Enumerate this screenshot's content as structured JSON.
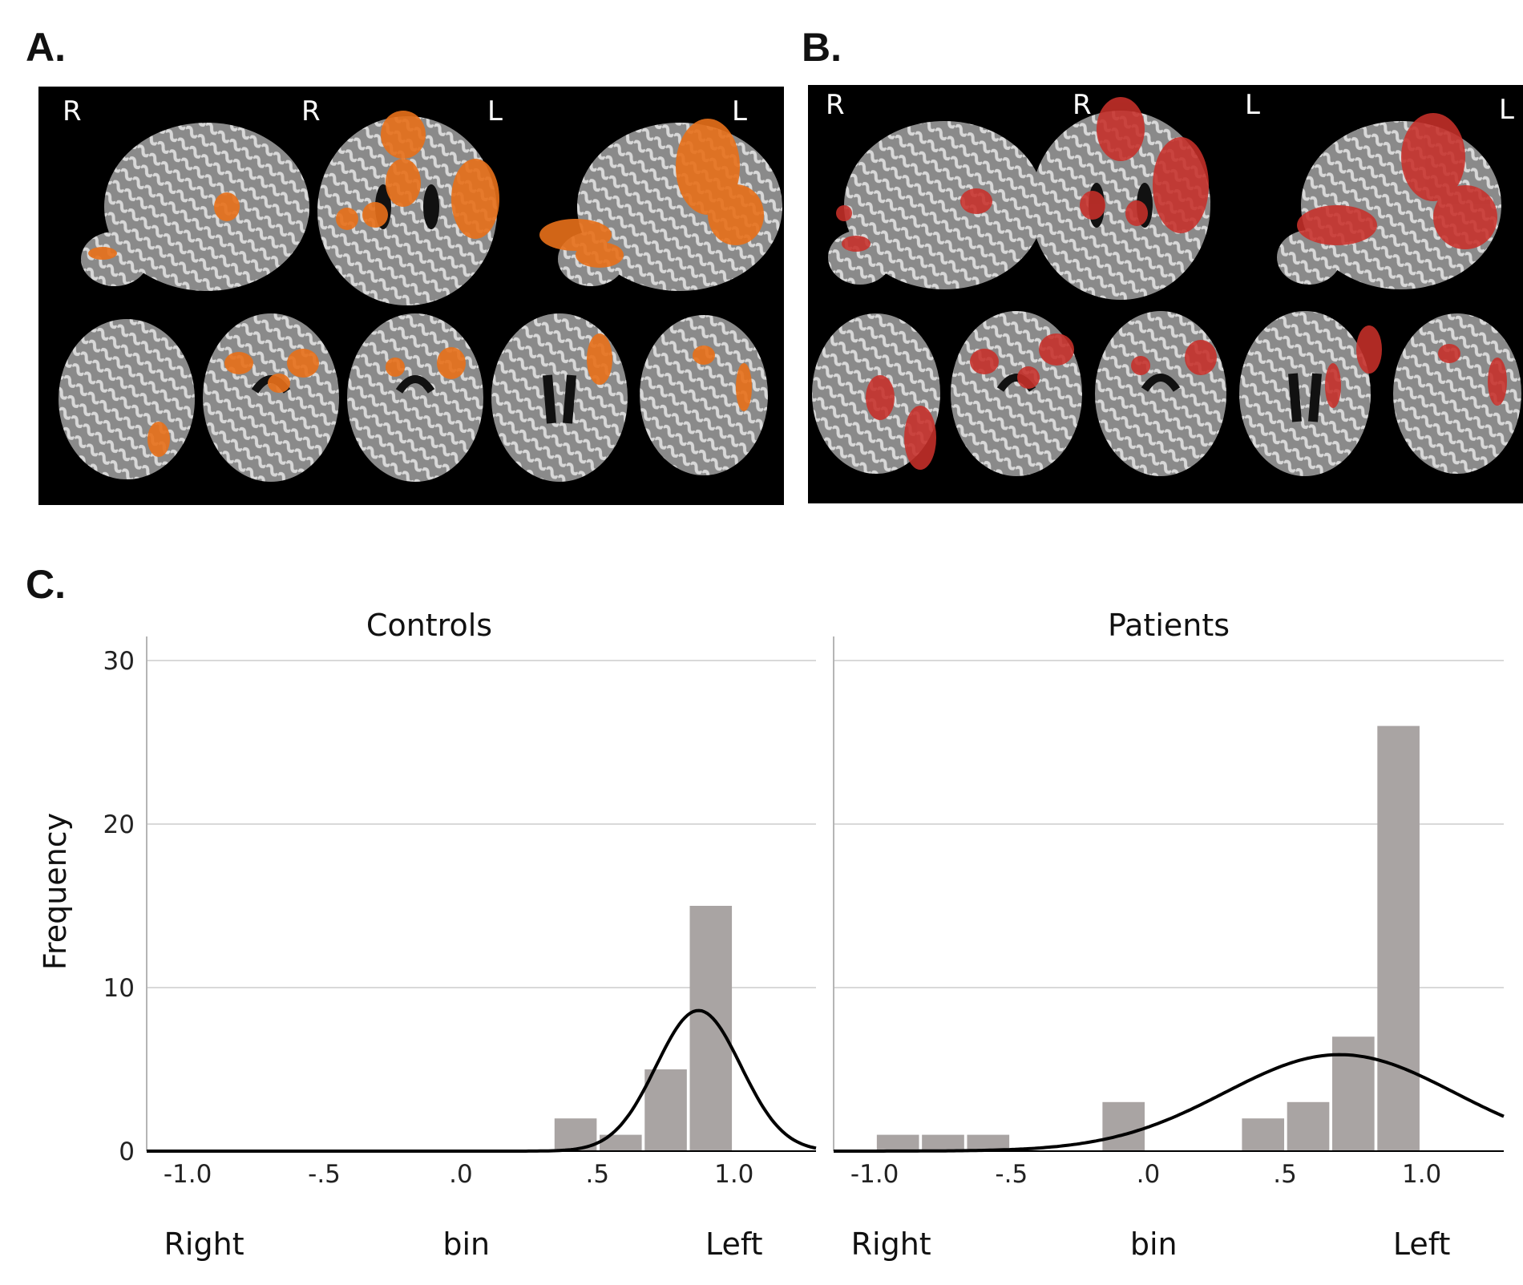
{
  "panels": {
    "a": {
      "label": "A.",
      "orientation": {
        "sagittal_right": "R",
        "coronal_right": "R",
        "coronal_left": "L",
        "sagittal_left": "L"
      },
      "overlay_color": "#e8701a"
    },
    "b": {
      "label": "B.",
      "orientation": {
        "sagittal_right": "R",
        "coronal_right": "R",
        "coronal_left": "L",
        "sagittal_left": "L"
      },
      "overlay_color": "#c8302a"
    },
    "c": {
      "label": "C."
    }
  },
  "colors": {
    "bar": "#a9a4a3",
    "curve": "#000000",
    "grid": "#d9d9d9",
    "brain_bg": "#000000"
  },
  "chart_data": [
    {
      "type": "bar",
      "title": "Controls",
      "ylabel": "Frequency",
      "ylim": [
        0,
        30
      ],
      "yticks": [
        "0",
        "10",
        "20",
        "30"
      ],
      "xlim": [
        -1.15,
        1.3
      ],
      "xticks": [
        "-1.0",
        "-.5",
        ".0",
        ".5",
        "1.0"
      ],
      "xtick_values": [
        -1.0,
        -0.5,
        0.0,
        0.5,
        1.0
      ],
      "x_annotations": {
        "left_end": "Right",
        "middle": "bin",
        "right_end": "Left"
      },
      "bin_width": 0.166,
      "bins": [
        {
          "center": 0.42,
          "count": 2
        },
        {
          "center": 0.585,
          "count": 1
        },
        {
          "center": 0.75,
          "count": 5
        },
        {
          "center": 0.915,
          "count": 15
        }
      ],
      "normal_curve": {
        "mean": 0.87,
        "sd": 0.155,
        "peak": 8.6
      },
      "grid": true
    },
    {
      "type": "bar",
      "title": "Patients",
      "ylim": [
        0,
        30
      ],
      "xlim": [
        -1.15,
        1.3
      ],
      "xticks": [
        "-1.0",
        "-.5",
        ".0",
        ".5",
        "1.0"
      ],
      "xtick_values": [
        -1.0,
        -0.5,
        0.0,
        0.5,
        1.0
      ],
      "x_annotations": {
        "left_end": "Right",
        "middle": "bin",
        "right_end": "Left"
      },
      "bin_width": 0.166,
      "bins": [
        {
          "center": -0.915,
          "count": 1
        },
        {
          "center": -0.75,
          "count": 1
        },
        {
          "center": -0.585,
          "count": 1
        },
        {
          "center": -0.09,
          "count": 3
        },
        {
          "center": 0.42,
          "count": 2
        },
        {
          "center": 0.585,
          "count": 3
        },
        {
          "center": 0.75,
          "count": 7
        },
        {
          "center": 0.915,
          "count": 26
        }
      ],
      "normal_curve": {
        "mean": 0.7,
        "sd": 0.42,
        "peak": 5.9
      },
      "grid": true
    }
  ]
}
